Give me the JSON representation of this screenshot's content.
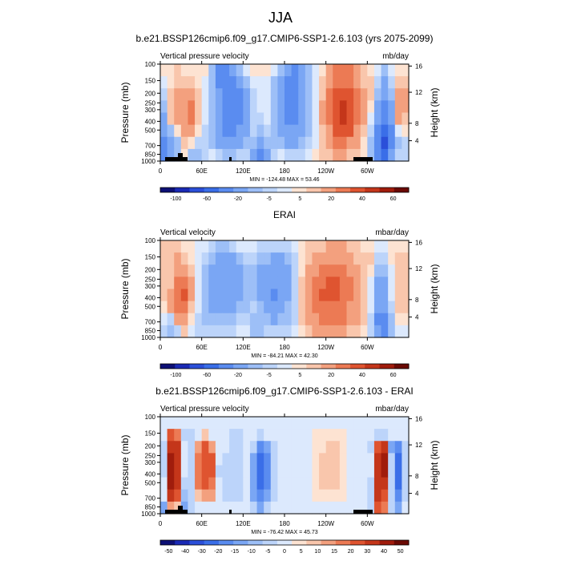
{
  "figure": {
    "title": "JJA"
  },
  "chart_data": [
    {
      "type": "heatmap",
      "title": "b.e21.BSSP126cmip6.f09_g17.CMIP6-SSP1-2.6.103 (yrs 2075-2099)",
      "left_label": "Vertical pressure velocity",
      "right_label": "mb/day",
      "ylabel": "Pressure (mb)",
      "ylabel_right": "Height (km)",
      "x_ticks": [
        "0",
        "60E",
        "120E",
        "180",
        "120W",
        "60W"
      ],
      "y_ticks": [
        "100",
        "150",
        "200",
        "250",
        "300",
        "400",
        "500",
        "700",
        "850",
        "1000"
      ],
      "y_ticks_right": [
        "16",
        "12",
        "8",
        "4"
      ],
      "stats": "MIN = -124.48  MAX = 53.46",
      "min": -124.48,
      "max": 53.46,
      "colorbar_labels": [
        "-100",
        "-60",
        "-20",
        "-5",
        "5",
        "20",
        "40",
        "60"
      ],
      "colorbar_levels": [
        -120,
        -100,
        -80,
        -60,
        -40,
        -20,
        -10,
        -5,
        0,
        5,
        10,
        20,
        30,
        40,
        50,
        60
      ],
      "colorbar_colors": [
        "#0d1075",
        "#1a2ab5",
        "#2b4fd9",
        "#3a6ee8",
        "#5a8cf0",
        "#7aa6f4",
        "#9dbff7",
        "#bcd4fa",
        "#dce9fd",
        "#fde3d2",
        "#f9c6ac",
        "#f3a07e",
        "#ec7a54",
        "#df5430",
        "#c4361a",
        "#a01c0c",
        "#6a0a04"
      ],
      "field": [
        [
          0,
          0,
          5,
          3,
          0,
          0,
          0,
          -20,
          -60,
          -60,
          -40,
          -20,
          -5,
          0,
          0,
          0,
          -5,
          -20,
          -40,
          -50,
          -40,
          -20,
          -5,
          0,
          10,
          20,
          25,
          20,
          10,
          5,
          0,
          -5,
          -20,
          -5,
          0,
          0
        ],
        [
          -5,
          0,
          5,
          5,
          5,
          0,
          -5,
          -20,
          -50,
          -60,
          -55,
          -40,
          -20,
          -5,
          -5,
          -5,
          -20,
          -40,
          -60,
          -60,
          -40,
          -20,
          -5,
          5,
          15,
          25,
          25,
          20,
          10,
          5,
          5,
          -10,
          -30,
          -10,
          5,
          5
        ],
        [
          -10,
          5,
          10,
          10,
          10,
          5,
          -5,
          -20,
          -40,
          -60,
          -60,
          -50,
          -30,
          -10,
          -5,
          -5,
          -20,
          -40,
          -55,
          -55,
          -40,
          -20,
          -5,
          5,
          20,
          35,
          35,
          30,
          20,
          10,
          5,
          -20,
          -40,
          -20,
          10,
          10
        ],
        [
          -20,
          5,
          15,
          15,
          20,
          5,
          -5,
          -20,
          -40,
          -55,
          -60,
          -50,
          -30,
          -10,
          -5,
          -5,
          -20,
          -40,
          -50,
          -50,
          -35,
          -20,
          -5,
          10,
          20,
          35,
          40,
          35,
          20,
          10,
          0,
          -30,
          -50,
          -30,
          15,
          10
        ],
        [
          -30,
          5,
          10,
          15,
          20,
          5,
          -5,
          -20,
          -40,
          -50,
          -55,
          -45,
          -30,
          -10,
          -10,
          -5,
          -20,
          -35,
          -45,
          -45,
          -30,
          -15,
          -5,
          10,
          20,
          35,
          40,
          35,
          20,
          10,
          -5,
          -40,
          -60,
          -40,
          10,
          5
        ],
        [
          -40,
          -20,
          0,
          10,
          10,
          0,
          -10,
          -20,
          -40,
          -45,
          -50,
          -40,
          -25,
          -10,
          -20,
          -10,
          -20,
          -30,
          -40,
          -40,
          -30,
          -15,
          -5,
          5,
          15,
          30,
          35,
          30,
          15,
          5,
          -10,
          -50,
          -80,
          -50,
          -5,
          0
        ],
        [
          -60,
          -40,
          -20,
          5,
          0,
          -10,
          -10,
          -20,
          -30,
          -40,
          -40,
          -30,
          -20,
          -20,
          -40,
          -20,
          -20,
          -20,
          -30,
          -30,
          -20,
          -10,
          -5,
          5,
          10,
          20,
          20,
          15,
          10,
          0,
          -20,
          -60,
          -100,
          -60,
          -20,
          -10
        ],
        [
          -60,
          -40,
          -20,
          0,
          -20,
          -20,
          -10,
          -5,
          -10,
          -20,
          -20,
          -10,
          -10,
          -30,
          -60,
          -30,
          -10,
          -5,
          -10,
          -10,
          -10,
          -5,
          0,
          5,
          5,
          10,
          10,
          5,
          5,
          0,
          -20,
          -50,
          -80,
          -40,
          -10,
          -10
        ]
      ]
    },
    {
      "type": "heatmap",
      "title": "ERAI",
      "left_label": "Vertical velocity",
      "right_label": "mbar/day",
      "ylabel": "Pressure (mb)",
      "ylabel_right": "Height (km)",
      "x_ticks": [
        "0",
        "60E",
        "120E",
        "180",
        "120W",
        "60W"
      ],
      "y_ticks": [
        "100",
        "150",
        "200",
        "250",
        "300",
        "400",
        "500",
        "700",
        "850",
        "1000"
      ],
      "y_ticks_right": [
        "16",
        "12",
        "8",
        "4"
      ],
      "stats": "MIN = -84.21  MAX = 42.30",
      "min": -84.21,
      "max": 42.3,
      "colorbar_labels": [
        "-100",
        "-60",
        "-20",
        "-5",
        "5",
        "20",
        "40",
        "60"
      ],
      "colorbar_levels": [
        -120,
        -100,
        -80,
        -60,
        -40,
        -20,
        -10,
        -5,
        0,
        5,
        10,
        20,
        30,
        40,
        50,
        60
      ],
      "colorbar_colors": [
        "#0d1075",
        "#1a2ab5",
        "#2b4fd9",
        "#3a6ee8",
        "#5a8cf0",
        "#7aa6f4",
        "#9dbff7",
        "#bcd4fa",
        "#dce9fd",
        "#fde3d2",
        "#f9c6ac",
        "#f3a07e",
        "#ec7a54",
        "#df5430",
        "#c4361a",
        "#a01c0c",
        "#6a0a04"
      ],
      "field": [
        [
          5,
          5,
          5,
          0,
          0,
          -5,
          -5,
          -10,
          -20,
          -20,
          -10,
          -5,
          -5,
          -5,
          -10,
          -10,
          -10,
          -10,
          -10,
          -5,
          0,
          5,
          5,
          5,
          10,
          10,
          10,
          5,
          5,
          0,
          0,
          -5,
          -5,
          0,
          0,
          0
        ],
        [
          5,
          5,
          10,
          5,
          0,
          -5,
          -10,
          -20,
          -30,
          -40,
          -30,
          -20,
          -10,
          -10,
          -20,
          -20,
          -30,
          -30,
          -20,
          -10,
          0,
          5,
          10,
          10,
          15,
          15,
          15,
          10,
          5,
          5,
          5,
          -10,
          -10,
          0,
          5,
          5
        ],
        [
          5,
          5,
          15,
          15,
          5,
          -5,
          -20,
          -30,
          -40,
          -40,
          -40,
          -30,
          -20,
          -20,
          -30,
          -30,
          -40,
          -40,
          -30,
          -10,
          0,
          10,
          15,
          20,
          20,
          20,
          20,
          15,
          10,
          5,
          0,
          -20,
          -20,
          -5,
          5,
          5
        ],
        [
          5,
          5,
          20,
          25,
          10,
          -5,
          -20,
          -40,
          -40,
          -40,
          -40,
          -30,
          -20,
          -20,
          -30,
          -40,
          -40,
          -40,
          -30,
          -10,
          5,
          15,
          20,
          25,
          30,
          30,
          25,
          20,
          10,
          5,
          -5,
          -30,
          -30,
          -5,
          5,
          5
        ],
        [
          5,
          10,
          25,
          30,
          10,
          -5,
          -20,
          -40,
          -40,
          -40,
          -40,
          -30,
          -20,
          -20,
          -30,
          -40,
          -50,
          -40,
          -30,
          -10,
          5,
          15,
          20,
          30,
          30,
          30,
          25,
          20,
          10,
          5,
          -5,
          -30,
          -30,
          -5,
          5,
          5
        ],
        [
          0,
          10,
          20,
          25,
          5,
          -5,
          -20,
          -30,
          -30,
          -30,
          -30,
          -20,
          -20,
          -10,
          -20,
          -30,
          -40,
          -30,
          -20,
          -10,
          5,
          15,
          20,
          25,
          25,
          25,
          20,
          15,
          10,
          5,
          -5,
          -40,
          -40,
          -10,
          5,
          5
        ],
        [
          -5,
          -10,
          10,
          10,
          0,
          -10,
          -20,
          -20,
          -20,
          -20,
          -20,
          -10,
          -10,
          -20,
          -20,
          -20,
          -30,
          -20,
          -20,
          -10,
          5,
          10,
          15,
          20,
          20,
          20,
          20,
          15,
          10,
          5,
          -10,
          -50,
          -50,
          -20,
          0,
          0
        ],
        [
          -10,
          -20,
          -10,
          5,
          -5,
          -10,
          -10,
          -10,
          -10,
          -10,
          -10,
          -5,
          -5,
          -20,
          -20,
          -10,
          -10,
          -10,
          -10,
          -5,
          0,
          5,
          10,
          10,
          10,
          10,
          10,
          5,
          5,
          0,
          -10,
          -40,
          -50,
          -20,
          -5,
          -5
        ]
      ]
    },
    {
      "type": "heatmap",
      "title": "b.e21.BSSP126cmip6.f09_g17.CMIP6-SSP1-2.6.103 - ERAI",
      "left_label": "Vertical pressure velocity",
      "right_label": "mbar/day",
      "ylabel": "Pressure (mb)",
      "ylabel_right": "Height (km)",
      "x_ticks": [
        "0",
        "60E",
        "120E",
        "180",
        "120W",
        "60W"
      ],
      "y_ticks": [
        "100",
        "150",
        "200",
        "250",
        "300",
        "400",
        "500",
        "700",
        "850",
        "1000"
      ],
      "y_ticks_right": [
        "16",
        "12",
        "8",
        "4"
      ],
      "stats": "MIN = -76.42  MAX = 45.73",
      "min": -76.42,
      "max": 45.73,
      "colorbar_labels": [
        "-50",
        "-40",
        "-30",
        "-20",
        "-15",
        "-10",
        "-5",
        "0",
        "5",
        "10",
        "15",
        "20",
        "30",
        "40",
        "50"
      ],
      "colorbar_levels": [
        -60,
        -50,
        -40,
        -30,
        -20,
        -15,
        -10,
        -5,
        0,
        5,
        10,
        15,
        20,
        30,
        40,
        50
      ],
      "colorbar_colors": [
        "#0d1075",
        "#1a2ab5",
        "#2b4fd9",
        "#3a6ee8",
        "#5a8cf0",
        "#7aa6f4",
        "#9dbff7",
        "#bcd4fa",
        "#dce9fd",
        "#fde3d2",
        "#f9c6ac",
        "#f3a07e",
        "#ec7a54",
        "#df5430",
        "#c4361a",
        "#a01c0c",
        "#6a0a04"
      ],
      "field": [
        [
          -5,
          -5,
          -5,
          -2,
          -2,
          -2,
          -2,
          -2,
          -2,
          -2,
          -2,
          -2,
          -2,
          -2,
          -2,
          -2,
          -2,
          -2,
          -2,
          -2,
          -2,
          -2,
          -2,
          -2,
          -2,
          -2,
          -2,
          -2,
          -2,
          -2,
          -2,
          -2,
          -2,
          -2,
          -2,
          -2
        ],
        [
          -5,
          20,
          15,
          -10,
          -10,
          -5,
          5,
          -5,
          -5,
          -5,
          -10,
          -10,
          -5,
          -5,
          -10,
          -5,
          -2,
          -2,
          -2,
          -2,
          -2,
          -2,
          2,
          2,
          2,
          2,
          2,
          -2,
          -2,
          -2,
          -5,
          -10,
          -10,
          -5,
          -5,
          -5
        ],
        [
          -10,
          35,
          30,
          -5,
          -10,
          10,
          20,
          10,
          -5,
          -5,
          -10,
          -10,
          -5,
          -10,
          -30,
          -20,
          -10,
          -5,
          -5,
          -5,
          -5,
          -2,
          2,
          2,
          5,
          5,
          2,
          -2,
          -2,
          -5,
          -10,
          20,
          30,
          -20,
          -30,
          -10
        ],
        [
          -10,
          40,
          35,
          -5,
          -10,
          15,
          25,
          20,
          -5,
          -10,
          -10,
          -10,
          -5,
          -20,
          -40,
          -30,
          -10,
          -5,
          -5,
          -5,
          -5,
          -2,
          2,
          5,
          5,
          5,
          2,
          -2,
          -2,
          -5,
          -5,
          30,
          40,
          -10,
          -40,
          -10
        ],
        [
          -10,
          45,
          35,
          -5,
          -10,
          15,
          25,
          20,
          -10,
          -10,
          -10,
          -10,
          -5,
          -20,
          -40,
          -30,
          -10,
          -5,
          -5,
          -5,
          -5,
          -2,
          2,
          5,
          5,
          5,
          2,
          -2,
          -2,
          -5,
          -5,
          35,
          40,
          -10,
          -40,
          -10
        ],
        [
          -5,
          40,
          30,
          -10,
          -10,
          15,
          20,
          15,
          -5,
          -10,
          -10,
          -10,
          -5,
          -20,
          -40,
          -30,
          -10,
          -5,
          -5,
          -5,
          -5,
          -2,
          2,
          5,
          5,
          5,
          2,
          -2,
          -2,
          -5,
          -10,
          35,
          35,
          -10,
          -40,
          -10
        ],
        [
          -5,
          30,
          20,
          -15,
          -10,
          5,
          10,
          10,
          -5,
          -10,
          -10,
          -10,
          -5,
          -20,
          -30,
          -20,
          -10,
          -5,
          -5,
          -5,
          -5,
          -2,
          2,
          2,
          2,
          2,
          2,
          -2,
          -2,
          -5,
          -10,
          30,
          25,
          -10,
          -30,
          -10
        ],
        [
          -20,
          10,
          5,
          -20,
          -10,
          -5,
          -5,
          -5,
          -5,
          -5,
          -5,
          -5,
          -5,
          -10,
          -20,
          -10,
          -5,
          -5,
          -5,
          -5,
          -5,
          -2,
          -2,
          -2,
          -2,
          -2,
          -2,
          -2,
          -2,
          -2,
          -10,
          20,
          15,
          -10,
          -20,
          -5
        ]
      ]
    }
  ]
}
